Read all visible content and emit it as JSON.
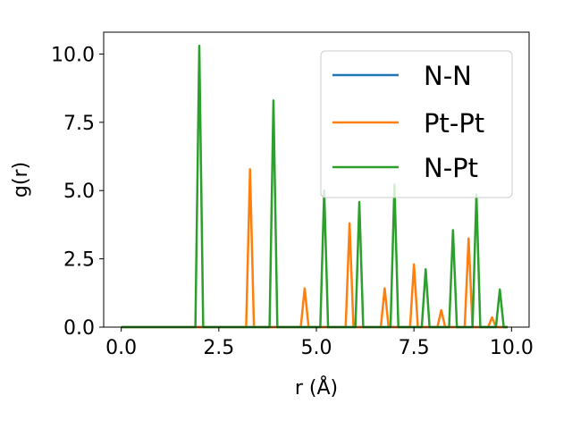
{
  "chart_data": {
    "type": "line",
    "title": "",
    "xlabel": "r (Å)",
    "ylabel": "g(r)",
    "xlim": [
      -0.45,
      10.45
    ],
    "ylim": [
      0,
      10.8
    ],
    "xticks": [
      0.0,
      2.5,
      5.0,
      7.5,
      10.0
    ],
    "xtick_labels": [
      "0.0",
      "2.5",
      "5.0",
      "7.5",
      "10.0"
    ],
    "yticks": [
      0.0,
      2.5,
      5.0,
      7.5,
      10.0
    ],
    "ytick_labels": [
      "0.0",
      "2.5",
      "5.0",
      "7.5",
      "10.0"
    ],
    "grid": false,
    "legend_position": "top-right",
    "series": [
      {
        "name": "N-N",
        "color": "#1f77b4",
        "x": [
          0.0,
          9.9
        ],
        "y": [
          0.0,
          0.0
        ]
      },
      {
        "name": "Pt-Pt",
        "color": "#ff7f0e",
        "x": [
          0.0,
          3.2,
          3.3,
          3.4,
          4.6,
          4.7,
          4.8,
          5.75,
          5.85,
          5.95,
          6.65,
          6.75,
          6.85,
          7.4,
          7.5,
          7.6,
          8.1,
          8.2,
          8.3,
          8.8,
          8.9,
          9.0,
          9.4,
          9.5,
          9.6,
          9.9
        ],
        "y": [
          0.0,
          0.0,
          5.78,
          0.0,
          0.0,
          1.42,
          0.0,
          0.0,
          3.8,
          0.0,
          0.0,
          1.42,
          0.0,
          0.0,
          2.3,
          0.0,
          0.0,
          0.62,
          0.0,
          0.0,
          3.25,
          0.0,
          0.0,
          0.36,
          0.0,
          0.0
        ]
      },
      {
        "name": "N-Pt",
        "color": "#2ca02c",
        "x": [
          0.0,
          1.9,
          2.0,
          2.1,
          3.8,
          3.9,
          4.0,
          5.1,
          5.2,
          5.3,
          6.0,
          6.1,
          6.2,
          6.9,
          7.0,
          7.1,
          7.7,
          7.8,
          7.9,
          8.4,
          8.5,
          8.6,
          9.0,
          9.1,
          9.2,
          9.6,
          9.7,
          9.8,
          9.9
        ],
        "y": [
          0.0,
          0.0,
          10.3,
          0.0,
          0.0,
          8.3,
          0.0,
          0.0,
          5.0,
          0.0,
          0.0,
          4.58,
          0.0,
          0.0,
          5.22,
          0.0,
          0.0,
          2.12,
          0.0,
          0.0,
          3.55,
          0.0,
          0.0,
          4.85,
          0.0,
          0.0,
          1.38,
          0.0,
          0.0
        ]
      }
    ]
  }
}
